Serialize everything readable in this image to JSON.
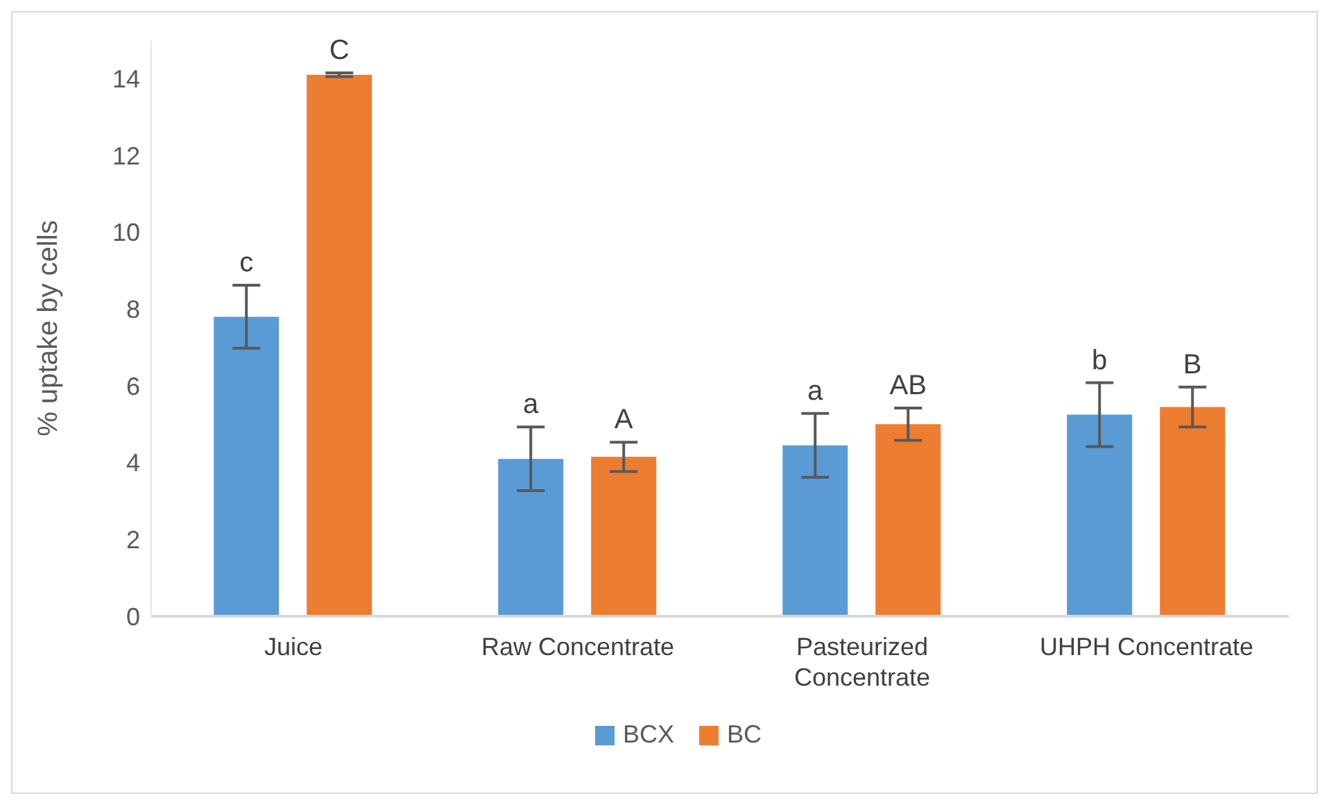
{
  "chart_data": {
    "type": "bar",
    "ylabel": "% uptake by cells",
    "categories": [
      "Juice",
      "Raw Concentrate",
      "Pasteurized Concentrate",
      "UHPH Concentrate"
    ],
    "series": [
      {
        "name": "BCX",
        "color": "#5b9bd5",
        "values": [
          7.8,
          4.1,
          4.45,
          5.25
        ],
        "errors": [
          0.82,
          0.83,
          0.83,
          0.83
        ],
        "value_labels": [
          "c",
          "a",
          "a",
          "b"
        ]
      },
      {
        "name": "BC",
        "color": "#ed7d31",
        "values": [
          14.1,
          4.15,
          5.0,
          5.45
        ],
        "errors": [
          0.05,
          0.38,
          0.42,
          0.52
        ],
        "value_labels": [
          "C",
          "A",
          "AB",
          "B"
        ]
      }
    ],
    "ylim": [
      0,
      15
    ],
    "yticks": [
      0,
      2,
      4,
      6,
      8,
      10,
      12,
      14
    ],
    "grid": false,
    "legend": "bottom"
  }
}
